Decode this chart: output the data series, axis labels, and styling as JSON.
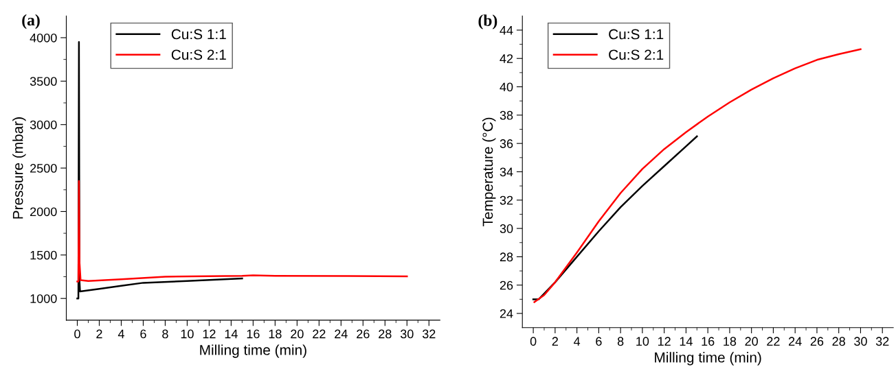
{
  "chart_data": [
    {
      "type": "line",
      "title": "(a)",
      "xlabel": "Milling time (min)",
      "ylabel": "Pressure (mbar)",
      "xlim": [
        -1,
        33
      ],
      "ylim": [
        750,
        4250
      ],
      "xticks": [
        0,
        {
          "value": 1,
          "label": null
        },
        2,
        {
          "value": 3,
          "label": null
        },
        4,
        {
          "value": 5,
          "label": null
        },
        6,
        {
          "value": 7,
          "label": null
        },
        8,
        {
          "value": 9,
          "label": null
        },
        10,
        {
          "value": 11,
          "label": null
        },
        12,
        {
          "value": 13,
          "label": null
        },
        14,
        {
          "value": 15,
          "label": null
        },
        16,
        {
          "value": 17,
          "label": null
        },
        18,
        {
          "value": 19,
          "label": null
        },
        20,
        {
          "value": 21,
          "label": null
        },
        22,
        {
          "value": 23,
          "label": null
        },
        24,
        {
          "value": 25,
          "label": null
        },
        26,
        {
          "value": 27,
          "label": null
        },
        28,
        {
          "value": 29,
          "label": null
        },
        30,
        {
          "value": 31,
          "label": null
        },
        32
      ],
      "yticks": [
        1000,
        {
          "value": 1250,
          "label": null
        },
        1500,
        {
          "value": 1750,
          "label": null
        },
        2000,
        {
          "value": 2250,
          "label": null
        },
        2500,
        {
          "value": 2750,
          "label": null
        },
        3000,
        {
          "value": 3250,
          "label": null
        },
        3500,
        {
          "value": 3750,
          "label": null
        },
        4000
      ],
      "legend": "top left",
      "grid": false,
      "series": [
        {
          "name": "Cu:S 1:1",
          "color": "#000000",
          "x": [
            0,
            0.1,
            0.15,
            0.2,
            0.25,
            2,
            4,
            6,
            10,
            15
          ],
          "values": [
            1000,
            1000,
            3950,
            1200,
            1080,
            1110,
            1145,
            1180,
            1200,
            1230
          ]
        },
        {
          "name": "Cu:S 2:1",
          "color": "#ff0000",
          "x": [
            0,
            0.1,
            0.15,
            0.2,
            0.3,
            1,
            4,
            8,
            15,
            16,
            18,
            30
          ],
          "values": [
            1195,
            1195,
            2350,
            1420,
            1210,
            1200,
            1220,
            1250,
            1260,
            1265,
            1260,
            1255
          ]
        }
      ]
    },
    {
      "type": "line",
      "title": "(b)",
      "xlabel": "Milling time (min)",
      "ylabel": "Temperature (°C)",
      "xlim": [
        -1,
        33
      ],
      "ylim": [
        23,
        45
      ],
      "xticks": [
        0,
        {
          "value": 1,
          "label": null
        },
        2,
        {
          "value": 3,
          "label": null
        },
        4,
        {
          "value": 5,
          "label": null
        },
        6,
        {
          "value": 7,
          "label": null
        },
        8,
        {
          "value": 9,
          "label": null
        },
        10,
        {
          "value": 11,
          "label": null
        },
        12,
        {
          "value": 13,
          "label": null
        },
        14,
        {
          "value": 15,
          "label": null
        },
        16,
        {
          "value": 17,
          "label": null
        },
        18,
        {
          "value": 19,
          "label": null
        },
        20,
        {
          "value": 21,
          "label": null
        },
        22,
        {
          "value": 23,
          "label": null
        },
        24,
        {
          "value": 25,
          "label": null
        },
        26,
        {
          "value": 27,
          "label": null
        },
        28,
        {
          "value": 29,
          "label": null
        },
        30,
        {
          "value": 31,
          "label": null
        },
        32
      ],
      "yticks": [
        24,
        {
          "value": 25,
          "label": null
        },
        26,
        {
          "value": 27,
          "label": null
        },
        28,
        {
          "value": 29,
          "label": null
        },
        30,
        {
          "value": 31,
          "label": null
        },
        32,
        {
          "value": 33,
          "label": null
        },
        34,
        {
          "value": 35,
          "label": null
        },
        36,
        {
          "value": 37,
          "label": null
        },
        38,
        {
          "value": 39,
          "label": null
        },
        40,
        {
          "value": 41,
          "label": null
        },
        42,
        {
          "value": 43,
          "label": null
        },
        44
      ],
      "legend": "top left",
      "grid": false,
      "series": [
        {
          "name": "Cu:S 1:1",
          "color": "#000000",
          "x": [
            0,
            0.5,
            2,
            4,
            6,
            8,
            10,
            12,
            14,
            15
          ],
          "values": [
            25.0,
            25.0,
            26.2,
            28.0,
            29.8,
            31.5,
            33.0,
            34.4,
            35.8,
            36.5
          ]
        },
        {
          "name": "Cu:S 2:1",
          "color": "#ff0000",
          "x": [
            0.1,
            1,
            2,
            4,
            6,
            8,
            10,
            12,
            14,
            16,
            18,
            20,
            22,
            24,
            26,
            28,
            30
          ],
          "values": [
            24.8,
            25.3,
            26.2,
            28.3,
            30.5,
            32.5,
            34.2,
            35.6,
            36.8,
            37.9,
            38.9,
            39.8,
            40.6,
            41.3,
            41.9,
            42.3,
            42.65
          ]
        }
      ]
    }
  ]
}
